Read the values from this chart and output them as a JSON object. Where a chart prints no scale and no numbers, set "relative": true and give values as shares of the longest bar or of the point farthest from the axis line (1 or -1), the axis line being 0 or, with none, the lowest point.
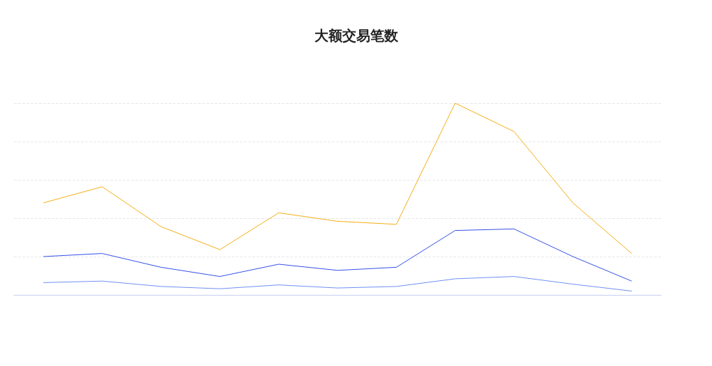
{
  "chart_data": {
    "type": "line",
    "title": "大额交易笔数",
    "relative": true,
    "grid": "y",
    "marker": "none",
    "categories": [
      null,
      null,
      null,
      null,
      null,
      null,
      null,
      null,
      null,
      null,
      null
    ],
    "series": [
      {
        "color": "#f5ad14",
        "values": [
          0.48,
          0.564,
          0.356,
          0.236,
          0.428,
          0.384,
          0.368,
          1,
          0.852,
          0.48,
          0.216
        ]
      },
      {
        "color": "#3250e6",
        "values": [
          0.2,
          0.216,
          0.144,
          0.096,
          0.16,
          0.128,
          0.144,
          0.336,
          0.344,
          0.2,
          0.072
        ]
      },
      {
        "color": "#6f8ff5",
        "values": [
          0.064,
          0.072,
          0.044,
          0.032,
          0.052,
          0.036,
          0.044,
          0.084,
          0.096,
          0.056,
          0.02
        ]
      }
    ]
  }
}
